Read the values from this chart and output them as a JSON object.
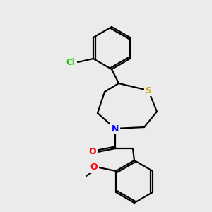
{
  "bg_color": "#ebebeb",
  "line_color": "#000000",
  "bond_width": 1.6,
  "figsize": [
    3.0,
    3.0
  ],
  "dpi": 100,
  "atoms": {
    "Cl": {
      "color": "#22cc00",
      "fontsize": 8.5
    },
    "S": {
      "color": "#ccaa00",
      "fontsize": 9
    },
    "N": {
      "color": "#0000ff",
      "fontsize": 9
    },
    "O1": {
      "color": "#ff0000",
      "fontsize": 9
    },
    "O2": {
      "color": "#ff0000",
      "fontsize": 9
    }
  }
}
